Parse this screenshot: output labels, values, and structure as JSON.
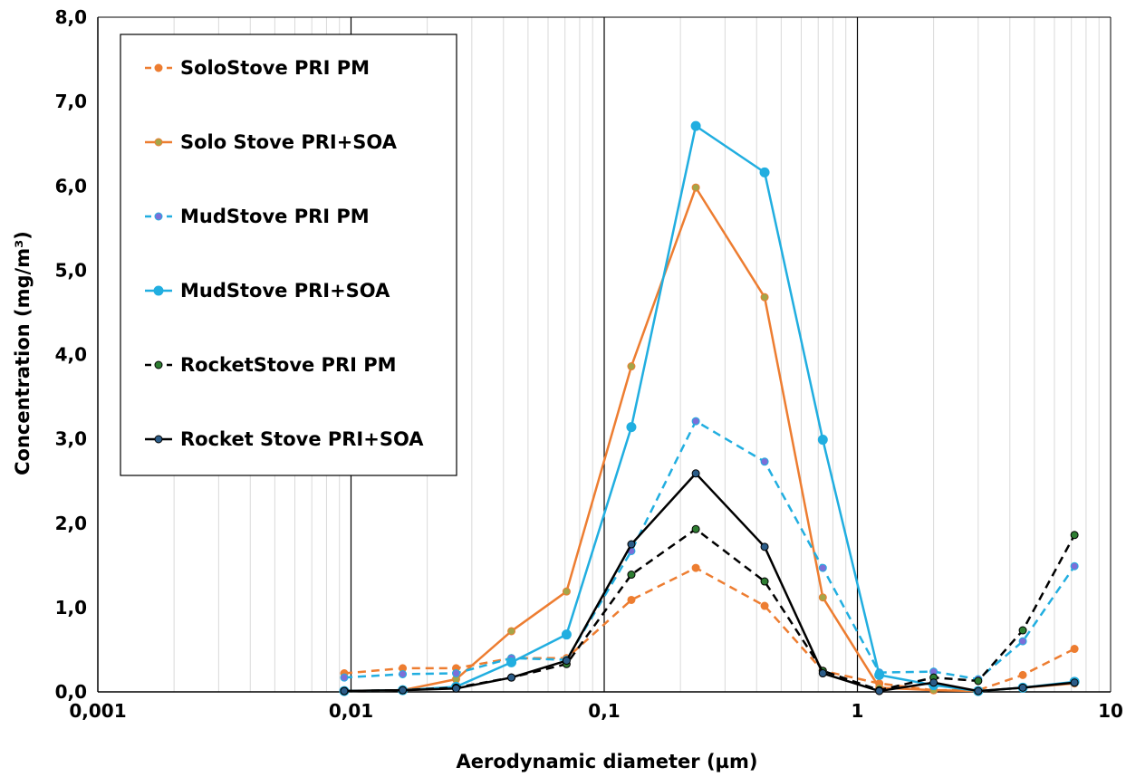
{
  "chart_data": {
    "type": "line",
    "xscale": "log",
    "xlim": [
      0.001,
      10
    ],
    "ylim": [
      0,
      8
    ],
    "grid": "vertical-log",
    "legend_position": "top-left",
    "xlabel": "Aerodynamic diameter (µm)",
    "ylabel": "Concentration (mg/m³)",
    "x_tick_labels": [
      "0,001",
      "0,01",
      "0,1",
      "1",
      "10"
    ],
    "y_tick_labels": [
      "0,0",
      "1,0",
      "2,0",
      "3,0",
      "4,0",
      "5,0",
      "6,0",
      "7,0",
      "8,0"
    ],
    "x": [
      0.0094,
      0.016,
      0.026,
      0.043,
      0.071,
      0.128,
      0.23,
      0.43,
      0.73,
      1.22,
      2.0,
      3.0,
      4.5,
      7.2
    ],
    "series": [
      {
        "name": "SoloStove PRI PM",
        "color": "#ED7D31",
        "marker": "#ED7D31",
        "dash": true,
        "values": [
          0.22,
          0.28,
          0.28,
          0.4,
          0.4,
          1.09,
          1.47,
          1.02,
          0.25,
          0.1,
          0.02,
          0.02,
          0.2,
          0.51
        ]
      },
      {
        "name": "Solo Stove PRI+SOA",
        "color": "#ED7D31",
        "marker": "#A5A548",
        "dash": false,
        "values": [
          0.01,
          0.02,
          0.15,
          0.72,
          1.19,
          3.86,
          5.98,
          4.68,
          1.12,
          0.05,
          0.02,
          0.01,
          0.05,
          0.1
        ]
      },
      {
        "name": "MudStove PRI PM",
        "color": "#21AEE0",
        "marker": "#7B6FD8",
        "dash": true,
        "values": [
          0.17,
          0.21,
          0.22,
          0.4,
          0.38,
          1.67,
          3.21,
          2.73,
          1.47,
          0.23,
          0.24,
          0.15,
          0.6,
          1.49
        ]
      },
      {
        "name": "MudStove PRI+SOA",
        "color": "#21AEE0",
        "marker": "#21AEE0",
        "dash": false,
        "values": [
          0.01,
          0.02,
          0.06,
          0.35,
          0.68,
          3.14,
          6.71,
          6.16,
          2.99,
          0.2,
          0.08,
          0.01,
          0.05,
          0.12
        ]
      },
      {
        "name": "RocketStove PRI PM",
        "color": "#000000",
        "marker": "#2E7D32",
        "dash": true,
        "values": [
          0.01,
          0.02,
          0.05,
          0.17,
          0.33,
          1.39,
          1.93,
          1.31,
          0.25,
          0.02,
          0.17,
          0.13,
          0.73,
          1.86
        ]
      },
      {
        "name": "Rocket Stove PRI+SOA",
        "color": "#000000",
        "marker": "#2B5C88",
        "dash": false,
        "values": [
          0.01,
          0.02,
          0.04,
          0.17,
          0.37,
          1.75,
          2.59,
          1.72,
          0.22,
          0.01,
          0.11,
          0.01,
          0.05,
          0.11
        ]
      }
    ]
  }
}
